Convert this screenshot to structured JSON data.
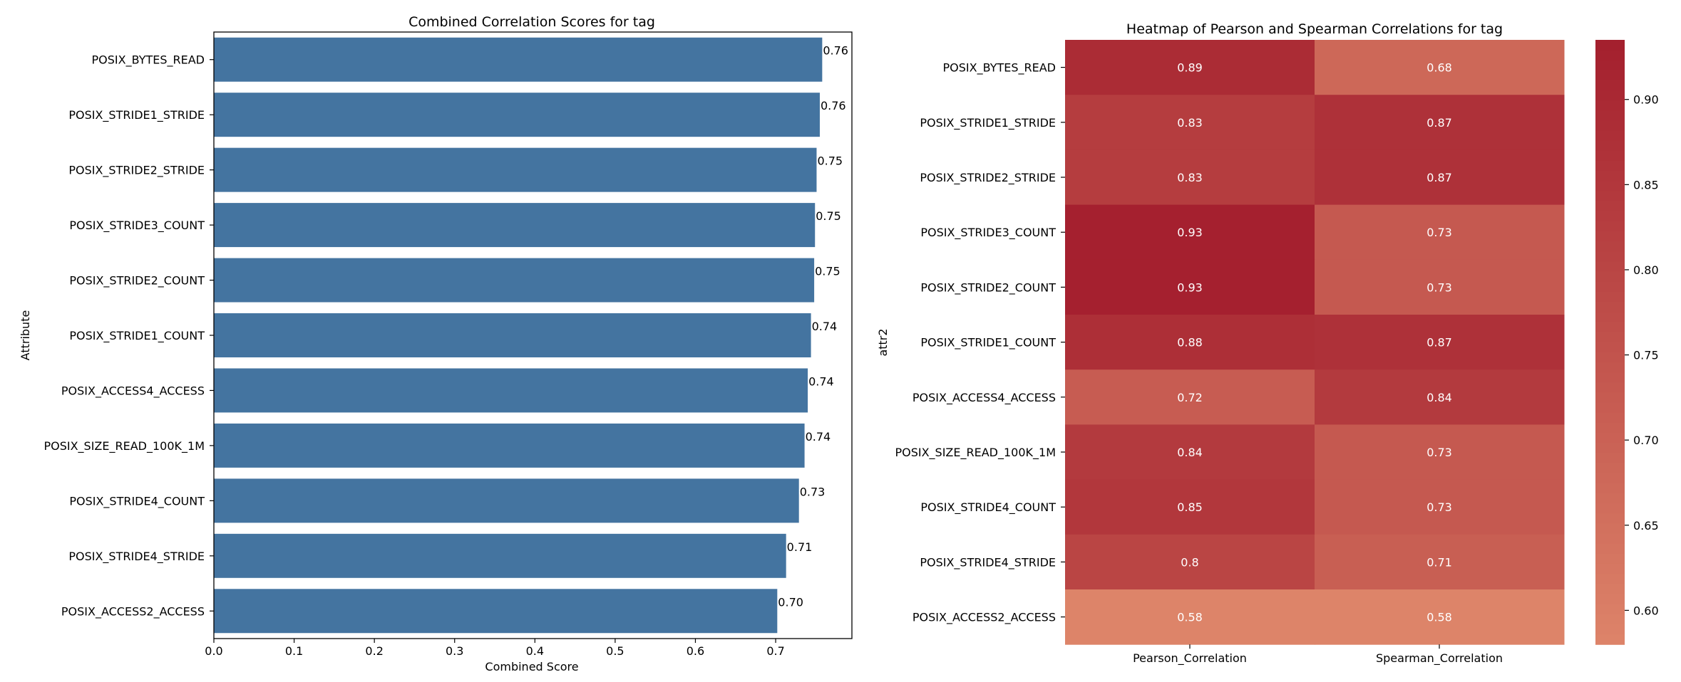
{
  "chart_data": [
    {
      "type": "bar",
      "orientation": "horizontal",
      "title": "Combined Correlation Scores for tag",
      "xlabel": "Combined Score",
      "ylabel": "Attribute",
      "xlim": [
        0,
        0.795
      ],
      "xticks": [
        "0.0",
        "0.1",
        "0.2",
        "0.3",
        "0.4",
        "0.5",
        "0.6",
        "0.7"
      ],
      "categories": [
        "POSIX_BYTES_READ",
        "POSIX_STRIDE1_STRIDE",
        "POSIX_STRIDE2_STRIDE",
        "POSIX_STRIDE3_COUNT",
        "POSIX_STRIDE2_COUNT",
        "POSIX_STRIDE1_COUNT",
        "POSIX_ACCESS4_ACCESS",
        "POSIX_SIZE_READ_100K_1M",
        "POSIX_STRIDE4_COUNT",
        "POSIX_STRIDE4_STRIDE",
        "POSIX_ACCESS2_ACCESS"
      ],
      "values": [
        0.758,
        0.755,
        0.751,
        0.749,
        0.748,
        0.744,
        0.74,
        0.736,
        0.729,
        0.713,
        0.702
      ],
      "labels": [
        "0.76",
        "0.76",
        "0.75",
        "0.75",
        "0.75",
        "0.74",
        "0.74",
        "0.74",
        "0.73",
        "0.71",
        "0.70"
      ],
      "color": "#4474a0",
      "grid": false
    },
    {
      "type": "heatmap",
      "title": "Heatmap of Pearson and Spearman Correlations for tag",
      "xlabel": "",
      "ylabel": "attr2",
      "columns": [
        "Pearson_Correlation",
        "Spearman_Correlation"
      ],
      "rows": [
        "POSIX_BYTES_READ",
        "POSIX_STRIDE1_STRIDE",
        "POSIX_STRIDE2_STRIDE",
        "POSIX_STRIDE3_COUNT",
        "POSIX_STRIDE2_COUNT",
        "POSIX_STRIDE1_COUNT",
        "POSIX_ACCESS4_ACCESS",
        "POSIX_SIZE_READ_100K_1M",
        "POSIX_STRIDE4_COUNT",
        "POSIX_STRIDE4_STRIDE",
        "POSIX_ACCESS2_ACCESS"
      ],
      "values": [
        [
          0.89,
          0.68
        ],
        [
          0.83,
          0.87
        ],
        [
          0.83,
          0.87
        ],
        [
          0.93,
          0.73
        ],
        [
          0.93,
          0.73
        ],
        [
          0.88,
          0.87
        ],
        [
          0.72,
          0.84
        ],
        [
          0.84,
          0.73
        ],
        [
          0.85,
          0.73
        ],
        [
          0.8,
          0.71
        ],
        [
          0.58,
          0.58
        ]
      ],
      "labels": [
        [
          "0.89",
          "0.68"
        ],
        [
          "0.83",
          "0.87"
        ],
        [
          "0.83",
          "0.87"
        ],
        [
          "0.93",
          "0.73"
        ],
        [
          "0.93",
          "0.73"
        ],
        [
          "0.88",
          "0.87"
        ],
        [
          "0.72",
          "0.84"
        ],
        [
          "0.84",
          "0.73"
        ],
        [
          "0.85",
          "0.73"
        ],
        [
          "0.8",
          "0.71"
        ],
        [
          "0.58",
          "0.58"
        ]
      ],
      "colorbar": {
        "min": 0.58,
        "max": 0.935,
        "ticks": [
          0.6,
          0.65,
          0.7,
          0.75,
          0.8,
          0.85,
          0.9
        ],
        "tick_labels": [
          "0.60",
          "0.65",
          "0.70",
          "0.75",
          "0.80",
          "0.85",
          "0.90"
        ],
        "low_color": "#dd8469",
        "high_color": "#a41f2e"
      }
    }
  ]
}
